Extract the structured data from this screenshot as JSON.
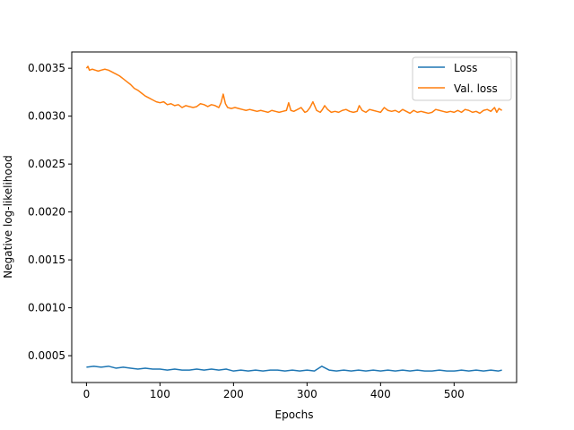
{
  "chart_data": {
    "type": "line",
    "title": "",
    "xlabel": "Epochs",
    "ylabel": "Negative log-likelihood",
    "xlim": [
      -20,
      585
    ],
    "ylim": [
      0.00022,
      0.00367
    ],
    "xticks": [
      0,
      100,
      200,
      300,
      400,
      500
    ],
    "yticks": [
      0.0005,
      0.001,
      0.0015,
      0.002,
      0.0025,
      0.003,
      0.0035
    ],
    "xtick_labels": [
      "0",
      "100",
      "200",
      "300",
      "400",
      "500"
    ],
    "ytick_labels": [
      "0.0005",
      "0.0010",
      "0.0015",
      "0.0020",
      "0.0025",
      "0.0030",
      "0.0035"
    ],
    "grid": false,
    "legend_position": "top-right",
    "series": [
      {
        "name": "Loss",
        "color": "#1f77b4",
        "x": [
          0,
          10,
          20,
          30,
          40,
          50,
          60,
          70,
          80,
          90,
          100,
          110,
          120,
          130,
          140,
          150,
          160,
          170,
          180,
          190,
          200,
          210,
          220,
          230,
          240,
          250,
          260,
          270,
          280,
          290,
          300,
          310,
          320,
          330,
          340,
          350,
          360,
          370,
          380,
          390,
          400,
          410,
          420,
          430,
          440,
          450,
          460,
          470,
          480,
          490,
          500,
          510,
          520,
          530,
          540,
          550,
          560,
          565
        ],
        "y": [
          0.00038,
          0.00039,
          0.00038,
          0.00039,
          0.00037,
          0.00038,
          0.00037,
          0.00036,
          0.00037,
          0.00036,
          0.00036,
          0.00035,
          0.00036,
          0.00035,
          0.00035,
          0.00036,
          0.00035,
          0.00036,
          0.00035,
          0.00036,
          0.00034,
          0.00035,
          0.00034,
          0.00035,
          0.00034,
          0.00035,
          0.00035,
          0.00034,
          0.00035,
          0.00034,
          0.00035,
          0.00034,
          0.00039,
          0.00035,
          0.00034,
          0.00035,
          0.00034,
          0.00035,
          0.00034,
          0.00035,
          0.00034,
          0.00035,
          0.00034,
          0.00035,
          0.00034,
          0.00035,
          0.00034,
          0.00034,
          0.00035,
          0.00034,
          0.00034,
          0.00035,
          0.00034,
          0.00035,
          0.00034,
          0.00035,
          0.00034,
          0.00035
        ]
      },
      {
        "name": "Val. loss",
        "color": "#ff7f0e",
        "x": [
          0,
          2,
          4,
          8,
          12,
          16,
          20,
          25,
          30,
          35,
          40,
          45,
          50,
          55,
          60,
          65,
          70,
          75,
          80,
          85,
          90,
          95,
          100,
          105,
          110,
          115,
          120,
          125,
          130,
          135,
          140,
          145,
          150,
          155,
          160,
          165,
          170,
          175,
          180,
          183,
          186,
          189,
          192,
          197,
          202,
          207,
          212,
          217,
          222,
          227,
          232,
          237,
          242,
          247,
          252,
          257,
          262,
          267,
          272,
          275,
          278,
          282,
          287,
          292,
          297,
          300,
          304,
          308,
          313,
          318,
          321,
          324,
          328,
          333,
          338,
          343,
          348,
          353,
          358,
          363,
          368,
          371,
          375,
          380,
          385,
          390,
          395,
          400,
          405,
          410,
          415,
          420,
          425,
          430,
          435,
          440,
          445,
          450,
          455,
          460,
          465,
          470,
          475,
          480,
          485,
          490,
          495,
          500,
          505,
          510,
          515,
          520,
          525,
          530,
          535,
          540,
          545,
          550,
          555,
          558,
          561,
          565
        ],
        "y": [
          0.0035,
          0.00352,
          0.00348,
          0.00349,
          0.00348,
          0.00347,
          0.00348,
          0.00349,
          0.00348,
          0.00346,
          0.00344,
          0.00342,
          0.00339,
          0.00336,
          0.00333,
          0.00329,
          0.00327,
          0.00324,
          0.00321,
          0.00319,
          0.00317,
          0.00315,
          0.00314,
          0.00315,
          0.00312,
          0.00313,
          0.00311,
          0.00312,
          0.00309,
          0.00311,
          0.0031,
          0.00309,
          0.0031,
          0.00313,
          0.00312,
          0.0031,
          0.00312,
          0.00311,
          0.00309,
          0.00314,
          0.00323,
          0.00313,
          0.00309,
          0.00308,
          0.00309,
          0.00308,
          0.00307,
          0.00306,
          0.00307,
          0.00306,
          0.00305,
          0.00306,
          0.00305,
          0.00304,
          0.00306,
          0.00305,
          0.00304,
          0.00305,
          0.00306,
          0.00314,
          0.00306,
          0.00305,
          0.00307,
          0.00309,
          0.00304,
          0.00305,
          0.00309,
          0.00315,
          0.00306,
          0.00304,
          0.00307,
          0.00311,
          0.00307,
          0.00304,
          0.00305,
          0.00304,
          0.00306,
          0.00307,
          0.00305,
          0.00304,
          0.00305,
          0.00311,
          0.00306,
          0.00304,
          0.00307,
          0.00306,
          0.00305,
          0.00304,
          0.00309,
          0.00306,
          0.00305,
          0.00306,
          0.00304,
          0.00307,
          0.00305,
          0.00303,
          0.00306,
          0.00304,
          0.00305,
          0.00304,
          0.00303,
          0.00304,
          0.00307,
          0.00306,
          0.00305,
          0.00304,
          0.00305,
          0.00304,
          0.00306,
          0.00304,
          0.00307,
          0.00306,
          0.00304,
          0.00305,
          0.00303,
          0.00306,
          0.00307,
          0.00305,
          0.00309,
          0.00304,
          0.00308,
          0.00306
        ]
      }
    ]
  }
}
